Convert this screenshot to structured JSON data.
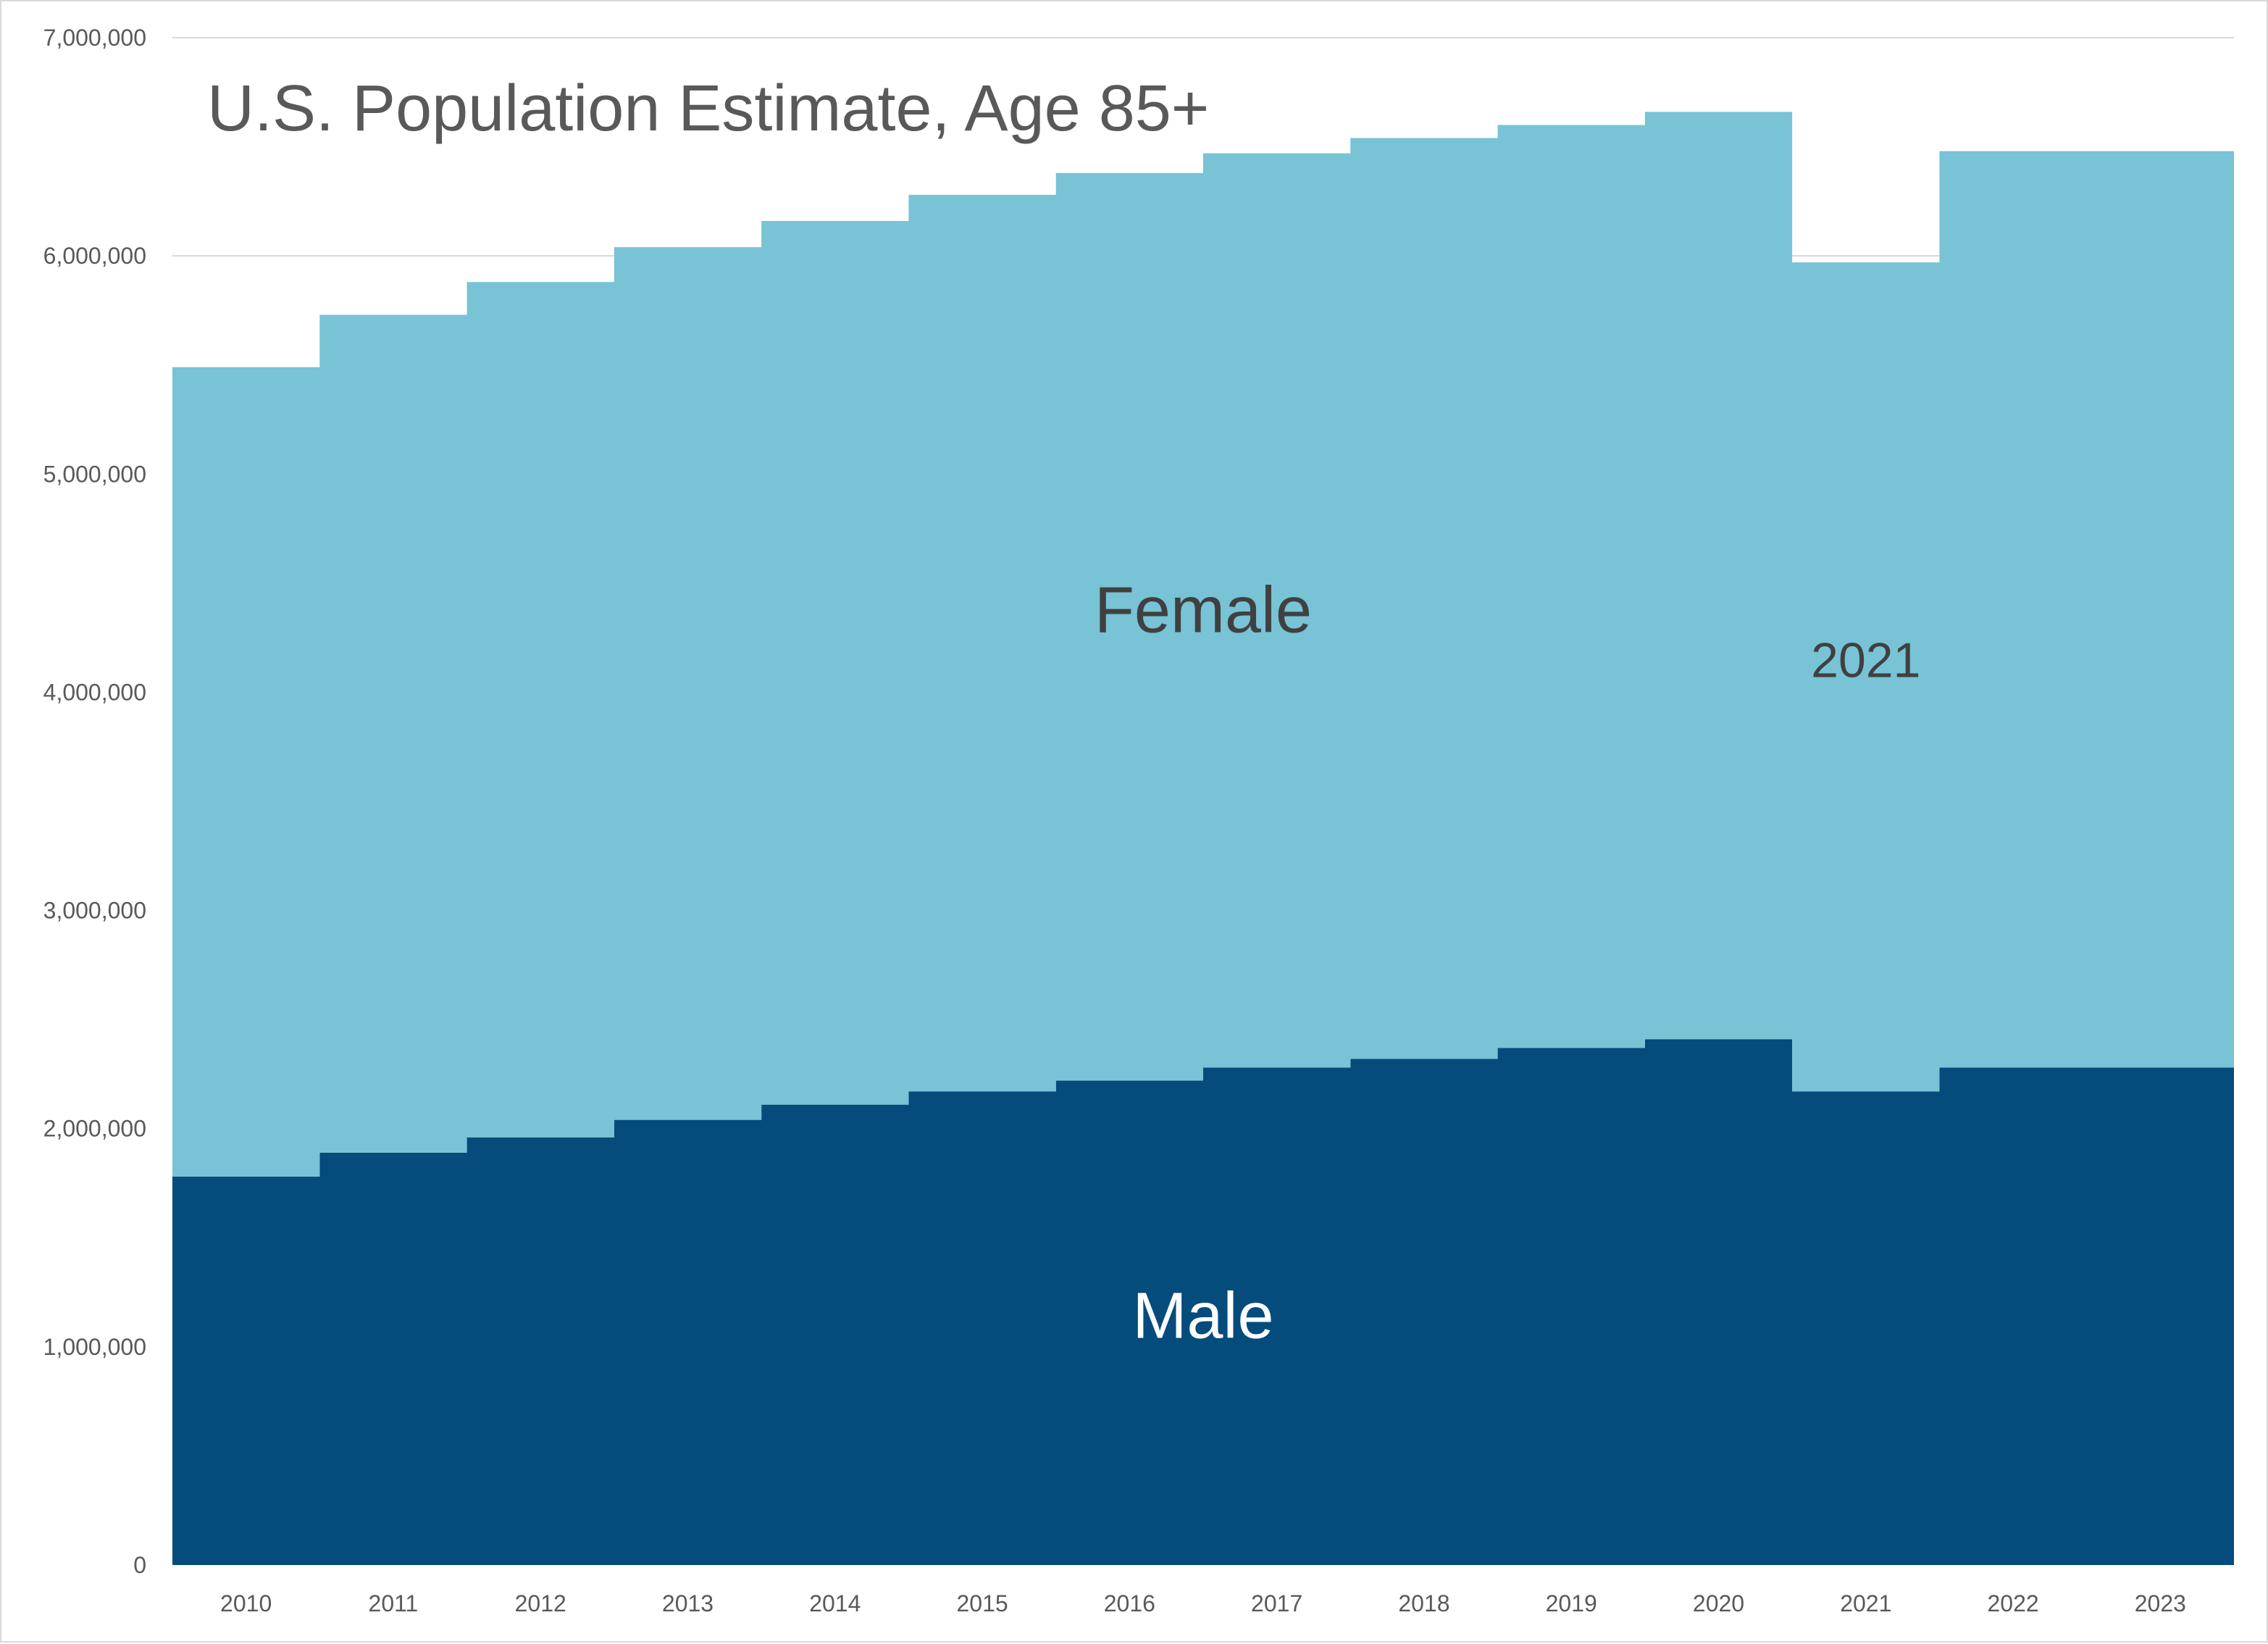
{
  "chart_data": {
    "type": "area",
    "title": "U.S. Population Estimate, Age 85+",
    "xlabel": "",
    "ylabel": "",
    "categories": [
      "2010",
      "2011",
      "2012",
      "2013",
      "2014",
      "2015",
      "2016",
      "2017",
      "2018",
      "2019",
      "2020",
      "2021",
      "2022",
      "2023"
    ],
    "series": [
      {
        "name": "Male",
        "color": "#034c7c",
        "label_color": "#ffffff",
        "values": [
          1780000,
          1890000,
          1960000,
          2040000,
          2110000,
          2170000,
          2220000,
          2280000,
          2320000,
          2370000,
          2410000,
          2170000,
          2280000,
          2280000
        ]
      },
      {
        "name": "Female",
        "color": "#78c3d5",
        "label_color": "#404040",
        "values": [
          3710000,
          3840000,
          3920000,
          4000000,
          4050000,
          4110000,
          4160000,
          4190000,
          4220000,
          4230000,
          4250000,
          3800000,
          4200000,
          4200000
        ]
      }
    ],
    "stacked": true,
    "step": true,
    "ylim": [
      0,
      7000000
    ],
    "yticks": [
      0,
      1000000,
      2000000,
      3000000,
      4000000,
      5000000,
      6000000,
      7000000
    ],
    "ytick_labels": [
      "0",
      "1,000,000",
      "2,000,000",
      "3,000,000",
      "4,000,000",
      "5,000,000",
      "6,000,000",
      "7,000,000"
    ],
    "grid": true,
    "gridline_color": "#d9d9d9",
    "annotations": [
      {
        "text": "2021",
        "category": "2021",
        "y": 4070000
      }
    ]
  }
}
